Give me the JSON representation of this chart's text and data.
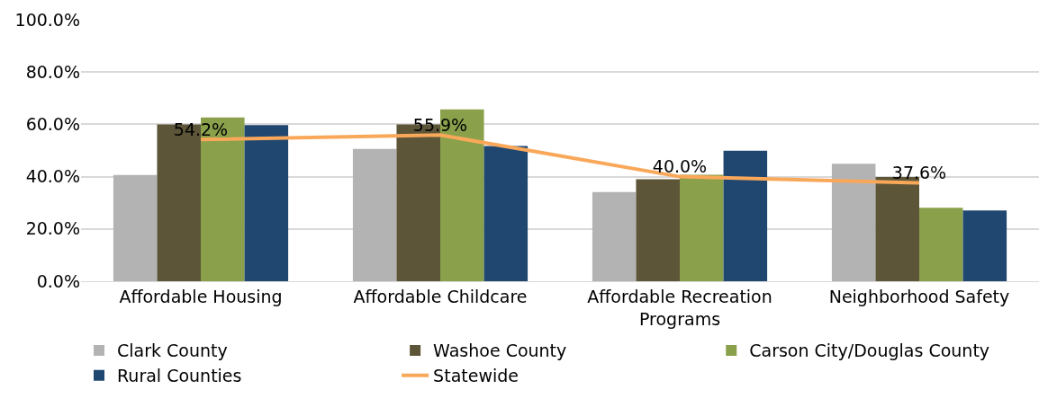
{
  "chart_data": {
    "type": "bar",
    "categories": [
      "Affordable Housing",
      "Affordable Childcare",
      "Affordable Recreation Programs",
      "Neighborhood Safety"
    ],
    "series": [
      {
        "name": "Clark County",
        "color": "#b3b3b3",
        "values": [
          40.6,
          50.6,
          34.1,
          44.9
        ]
      },
      {
        "name": "Washoe County",
        "color": "#5c5538",
        "values": [
          60.0,
          60.0,
          39.0,
          39.9
        ]
      },
      {
        "name": "Carson City/Douglas County",
        "color": "#8aa04b",
        "values": [
          62.6,
          65.7,
          40.7,
          28.1
        ]
      },
      {
        "name": "Rural Counties",
        "color": "#1f4770",
        "values": [
          59.7,
          51.7,
          49.9,
          27.1
        ]
      },
      {
        "name": "Statewide",
        "type": "line",
        "color": "#f9a85a",
        "values": [
          54.2,
          55.9,
          40.0,
          37.6
        ],
        "value_labels": [
          "54.2%",
          "55.9%",
          "40.0%",
          "37.6%"
        ]
      }
    ],
    "ylim": [
      0,
      100
    ],
    "yticks": [
      {
        "value": 0,
        "label": "0.0%"
      },
      {
        "value": 20,
        "label": "20.0%"
      },
      {
        "value": 40,
        "label": "40.0%"
      },
      {
        "value": 60,
        "label": "60.0%"
      },
      {
        "value": 80,
        "label": "80.0%"
      },
      {
        "value": 100,
        "label": "100.0%"
      }
    ],
    "grid": "y",
    "legend": "bottom",
    "marker": "none",
    "line_style": "solid"
  }
}
